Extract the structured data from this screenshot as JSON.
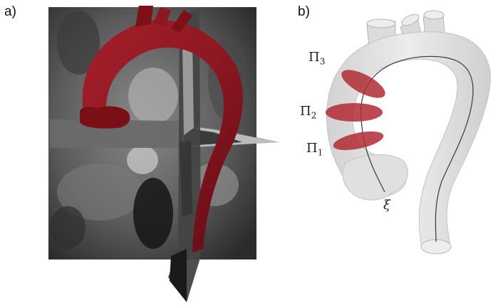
{
  "panels": {
    "a": {
      "label": "a)"
    },
    "b": {
      "label": "b)",
      "planes": [
        {
          "symbol": "Π",
          "index": "3"
        },
        {
          "symbol": "Π",
          "index": "2"
        },
        {
          "symbol": "Π",
          "index": "1"
        }
      ],
      "centerline": "ξ"
    }
  },
  "colors": {
    "aorta_red": "#8e1722",
    "plane_red": "#b02a32",
    "vessel_gray": "#e3e3e3",
    "ct_gray": "#6f6f6f"
  }
}
